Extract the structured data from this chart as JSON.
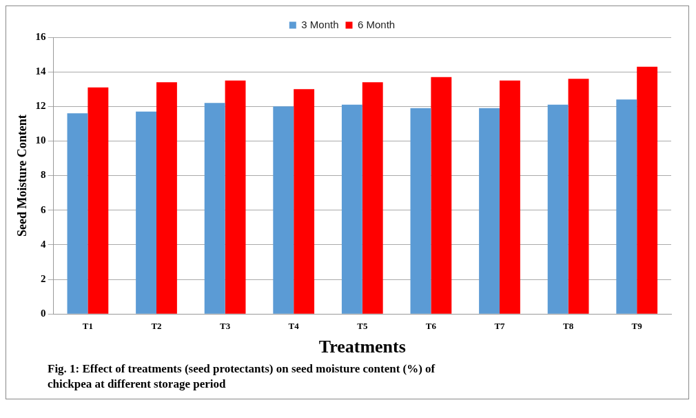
{
  "chart_data": {
    "type": "bar",
    "xlabel": "Treatments",
    "ylabel": "Seed Moisture Content",
    "categories": [
      "T1",
      "T2",
      "T3",
      "T4",
      "T5",
      "T6",
      "T7",
      "T8",
      "T9"
    ],
    "series": [
      {
        "name": "3 Month",
        "color": "#5b9bd5",
        "values": [
          11.6,
          11.7,
          12.2,
          12.0,
          12.1,
          11.9,
          11.9,
          12.1,
          12.4
        ]
      },
      {
        "name": "6 Month",
        "color": "#ff0000",
        "values": [
          13.1,
          13.4,
          13.5,
          13.0,
          13.4,
          13.7,
          13.5,
          13.6,
          14.3
        ]
      }
    ],
    "ylim": [
      0,
      16
    ],
    "yticks": [
      0,
      2,
      4,
      6,
      8,
      10,
      12,
      14,
      16
    ],
    "grid": "y",
    "legend": "top",
    "annotations": [
      "Fig. 1: Effect of treatments (seed protectants) on seed moisture content (%) of\nchickpea at different storage period"
    ]
  }
}
